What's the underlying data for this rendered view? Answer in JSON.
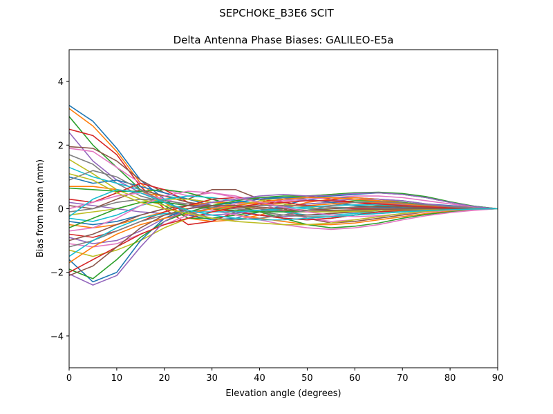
{
  "chart_data": {
    "type": "line",
    "suptitle": "SEPCHOKE_B3E6   SCIT",
    "title": "Delta Antenna Phase Biases: GALILEO-E5a",
    "xlabel": "Elevation angle (degrees)",
    "ylabel": "Bias from mean (mm)",
    "xlim": [
      0,
      90
    ],
    "ylim": [
      -5,
      5
    ],
    "xticks": [
      0,
      10,
      20,
      30,
      40,
      50,
      60,
      70,
      80,
      90
    ],
    "yticks": [
      -4,
      -2,
      0,
      2,
      4
    ],
    "xtick_labels": [
      "0",
      "10",
      "20",
      "30",
      "40",
      "50",
      "60",
      "70",
      "80",
      "90"
    ],
    "ytick_labels": [
      "−4",
      "−2",
      "0",
      "2",
      "4"
    ],
    "grid": false,
    "legend": "none",
    "x": [
      0,
      5,
      10,
      15,
      20,
      25,
      30,
      35,
      40,
      45,
      50,
      55,
      60,
      65,
      70,
      75,
      80,
      85,
      90
    ],
    "palette": [
      "#1f77b4",
      "#ff7f0e",
      "#2ca02c",
      "#d62728",
      "#9467bd",
      "#8c564b",
      "#e377c2",
      "#7f7f7f",
      "#bcbd22",
      "#17becf"
    ],
    "series": [
      {
        "values": [
          3.25,
          2.75,
          1.9,
          0.9,
          0.3,
          -0.2,
          -0.35,
          -0.3,
          -0.1,
          0.1,
          0.3,
          0.35,
          0.35,
          0.3,
          0.25,
          0.15,
          0.1,
          0.05,
          0.0
        ]
      },
      {
        "values": [
          3.15,
          2.6,
          1.8,
          0.8,
          0.2,
          -0.3,
          -0.4,
          -0.35,
          -0.2,
          0.0,
          0.2,
          0.3,
          0.35,
          0.3,
          0.2,
          0.12,
          0.08,
          0.04,
          0.0
        ]
      },
      {
        "values": [
          2.9,
          2.0,
          1.3,
          0.6,
          0.1,
          -0.3,
          -0.3,
          -0.2,
          -0.1,
          0.05,
          0.15,
          0.2,
          0.25,
          0.25,
          0.2,
          0.12,
          0.07,
          0.03,
          0.0
        ]
      },
      {
        "values": [
          2.5,
          2.3,
          1.7,
          0.7,
          0.0,
          -0.5,
          -0.4,
          -0.1,
          0.1,
          0.3,
          0.4,
          0.3,
          0.2,
          0.1,
          0.05,
          0.03,
          0.02,
          0.01,
          0.0
        ]
      },
      {
        "values": [
          2.4,
          1.5,
          0.9,
          0.5,
          0.3,
          0.1,
          0.0,
          -0.1,
          -0.2,
          -0.25,
          -0.2,
          -0.15,
          -0.1,
          -0.05,
          -0.03,
          -0.02,
          -0.01,
          0.0,
          0.0
        ]
      },
      {
        "values": [
          1.95,
          1.9,
          1.5,
          0.9,
          0.5,
          0.3,
          0.6,
          0.6,
          0.3,
          0.0,
          -0.3,
          -0.45,
          -0.4,
          -0.3,
          -0.2,
          -0.1,
          -0.05,
          -0.02,
          0.0
        ]
      },
      {
        "values": [
          1.9,
          1.8,
          1.3,
          0.8,
          0.6,
          0.4,
          0.5,
          0.4,
          0.2,
          -0.1,
          -0.3,
          -0.4,
          -0.35,
          -0.25,
          -0.15,
          -0.08,
          -0.04,
          -0.02,
          0.0
        ]
      },
      {
        "values": [
          1.7,
          1.4,
          0.8,
          0.4,
          0.2,
          0.1,
          0.05,
          0.0,
          -0.05,
          -0.1,
          -0.1,
          -0.08,
          -0.05,
          -0.03,
          -0.02,
          -0.01,
          0.0,
          0.0,
          0.0
        ]
      },
      {
        "values": [
          1.55,
          1.1,
          0.6,
          0.3,
          0.1,
          0.0,
          0.1,
          0.2,
          0.2,
          0.15,
          0.05,
          -0.05,
          -0.1,
          -0.1,
          -0.08,
          -0.05,
          -0.03,
          -0.01,
          0.0
        ]
      },
      {
        "values": [
          1.3,
          1.0,
          0.8,
          0.6,
          0.4,
          0.3,
          0.2,
          0.1,
          0.0,
          -0.1,
          -0.2,
          -0.2,
          -0.15,
          -0.1,
          -0.06,
          -0.03,
          -0.02,
          -0.01,
          0.0
        ]
      },
      {
        "values": [
          1.0,
          0.8,
          0.9,
          0.7,
          0.5,
          0.3,
          0.1,
          -0.1,
          -0.2,
          -0.3,
          -0.35,
          -0.3,
          -0.2,
          -0.1,
          -0.05,
          -0.03,
          -0.02,
          -0.01,
          0.0
        ]
      },
      {
        "values": [
          0.7,
          0.7,
          0.6,
          0.5,
          0.4,
          0.2,
          0.0,
          -0.2,
          -0.3,
          -0.4,
          -0.5,
          -0.5,
          -0.45,
          -0.35,
          -0.25,
          -0.15,
          -0.08,
          -0.03,
          0.0
        ]
      },
      {
        "values": [
          0.65,
          0.6,
          0.55,
          0.55,
          0.6,
          0.5,
          0.3,
          0.1,
          -0.1,
          -0.3,
          -0.5,
          -0.6,
          -0.55,
          -0.45,
          -0.3,
          -0.18,
          -0.1,
          -0.04,
          0.0
        ]
      },
      {
        "values": [
          0.3,
          0.2,
          0.5,
          0.8,
          0.6,
          0.2,
          0.0,
          -0.1,
          -0.2,
          -0.3,
          -0.35,
          -0.3,
          -0.2,
          -0.1,
          -0.05,
          -0.02,
          -0.01,
          0.0,
          0.0
        ]
      },
      {
        "values": [
          0.2,
          0.1,
          0.0,
          -0.1,
          -0.15,
          -0.2,
          -0.2,
          -0.15,
          -0.05,
          0.05,
          0.15,
          0.2,
          0.2,
          0.18,
          0.12,
          0.07,
          0.04,
          0.02,
          0.0
        ]
      },
      {
        "values": [
          0.1,
          0.0,
          0.3,
          0.6,
          0.4,
          0.2,
          0.1,
          0.0,
          -0.1,
          -0.2,
          -0.2,
          -0.15,
          -0.1,
          -0.05,
          -0.02,
          -0.01,
          0.0,
          0.0,
          0.0
        ]
      },
      {
        "values": [
          0.0,
          0.2,
          0.4,
          0.5,
          0.3,
          0.1,
          -0.05,
          -0.2,
          -0.35,
          -0.5,
          -0.6,
          -0.65,
          -0.6,
          -0.5,
          -0.35,
          -0.22,
          -0.12,
          -0.05,
          0.0
        ]
      },
      {
        "values": [
          -0.1,
          0.0,
          0.2,
          0.3,
          0.25,
          0.15,
          0.1,
          0.0,
          -0.1,
          -0.2,
          -0.25,
          -0.25,
          -0.2,
          -0.15,
          -0.1,
          -0.05,
          -0.03,
          -0.01,
          0.0
        ]
      },
      {
        "values": [
          -0.2,
          -0.1,
          0.0,
          0.2,
          0.3,
          0.3,
          0.2,
          0.1,
          0.0,
          -0.05,
          -0.1,
          -0.1,
          -0.08,
          -0.05,
          -0.03,
          -0.02,
          -0.01,
          0.0,
          0.0
        ]
      },
      {
        "values": [
          -0.3,
          -0.4,
          -0.2,
          0.1,
          0.3,
          0.4,
          0.35,
          0.25,
          0.15,
          0.05,
          0.0,
          0.0,
          0.02,
          0.03,
          0.03,
          0.02,
          0.01,
          0.0,
          0.0
        ]
      },
      {
        "values": [
          -0.4,
          -0.5,
          -0.4,
          -0.2,
          0.0,
          0.1,
          0.2,
          0.3,
          0.35,
          0.35,
          0.3,
          0.2,
          0.1,
          0.05,
          0.02,
          0.01,
          0.0,
          0.0,
          0.0
        ]
      },
      {
        "values": [
          -0.5,
          -0.6,
          -0.5,
          -0.3,
          -0.1,
          0.1,
          0.2,
          0.2,
          0.15,
          0.1,
          0.1,
          0.15,
          0.2,
          0.2,
          0.15,
          0.1,
          0.05,
          0.02,
          0.0
        ]
      },
      {
        "values": [
          -0.6,
          -0.3,
          0.0,
          0.2,
          0.2,
          0.1,
          0.0,
          -0.05,
          -0.1,
          -0.1,
          -0.05,
          0.0,
          0.05,
          0.08,
          0.07,
          0.05,
          0.03,
          0.01,
          0.0
        ]
      },
      {
        "values": [
          -0.8,
          -0.9,
          -0.7,
          -0.4,
          -0.1,
          0.1,
          0.3,
          0.35,
          0.3,
          0.2,
          0.1,
          0.05,
          0.0,
          0.0,
          0.0,
          0.0,
          0.0,
          0.0,
          0.0
        ]
      },
      {
        "values": [
          -0.9,
          -1.1,
          -1.0,
          -0.7,
          -0.3,
          0.0,
          0.2,
          0.3,
          0.35,
          0.3,
          0.25,
          0.25,
          0.3,
          0.3,
          0.25,
          0.15,
          0.08,
          0.03,
          0.0
        ]
      },
      {
        "values": [
          -1.0,
          -0.8,
          -0.5,
          -0.2,
          0.0,
          0.1,
          0.1,
          0.05,
          0.0,
          -0.05,
          -0.05,
          0.0,
          0.05,
          0.07,
          0.06,
          0.04,
          0.02,
          0.01,
          0.0
        ]
      },
      {
        "values": [
          -1.1,
          -1.2,
          -1.1,
          -0.8,
          -0.5,
          -0.2,
          0.0,
          0.15,
          0.2,
          0.25,
          0.3,
          0.35,
          0.4,
          0.4,
          0.35,
          0.25,
          0.15,
          0.06,
          0.0
        ]
      },
      {
        "values": [
          -1.2,
          -1.0,
          -0.7,
          -0.4,
          -0.2,
          -0.1,
          0.0,
          0.05,
          0.1,
          0.1,
          0.08,
          0.05,
          0.03,
          0.02,
          0.01,
          0.0,
          0.0,
          0.0,
          0.0
        ]
      },
      {
        "values": [
          -1.3,
          -1.5,
          -1.3,
          -1.0,
          -0.6,
          -0.3,
          -0.1,
          0.1,
          0.25,
          0.35,
          0.4,
          0.45,
          0.5,
          0.5,
          0.45,
          0.35,
          0.2,
          0.08,
          0.0
        ]
      },
      {
        "values": [
          -1.5,
          -1.0,
          -0.6,
          -0.3,
          -0.15,
          -0.1,
          -0.1,
          -0.1,
          -0.05,
          0.0,
          0.05,
          0.1,
          0.12,
          0.12,
          0.1,
          0.07,
          0.04,
          0.02,
          0.0
        ]
      },
      {
        "values": [
          -1.6,
          -2.3,
          -2.0,
          -1.0,
          -0.3,
          0.0,
          0.1,
          0.2,
          0.3,
          0.35,
          0.35,
          0.4,
          0.45,
          0.5,
          0.45,
          0.35,
          0.2,
          0.08,
          0.0
        ]
      },
      {
        "values": [
          -1.7,
          -1.2,
          -0.8,
          -0.5,
          -0.3,
          -0.15,
          0.0,
          0.1,
          0.2,
          0.3,
          0.35,
          0.35,
          0.3,
          0.25,
          0.18,
          0.1,
          0.05,
          0.02,
          0.0
        ]
      },
      {
        "values": [
          -1.9,
          -2.2,
          -1.6,
          -0.9,
          -0.4,
          -0.1,
          0.1,
          0.25,
          0.35,
          0.4,
          0.4,
          0.45,
          0.5,
          0.52,
          0.48,
          0.38,
          0.22,
          0.08,
          0.0
        ]
      },
      {
        "values": [
          -2.0,
          -1.6,
          -1.2,
          -0.8,
          -0.5,
          -0.3,
          -0.1,
          0.05,
          0.15,
          0.2,
          0.25,
          0.25,
          0.2,
          0.15,
          0.1,
          0.06,
          0.03,
          0.01,
          0.0
        ]
      },
      {
        "values": [
          -2.05,
          -2.4,
          -2.1,
          -1.2,
          -0.4,
          0.0,
          0.2,
          0.3,
          0.4,
          0.45,
          0.4,
          0.42,
          0.48,
          0.5,
          0.45,
          0.35,
          0.2,
          0.07,
          0.0
        ]
      },
      {
        "values": [
          -2.1,
          -1.8,
          -1.2,
          -0.6,
          -0.2,
          0.0,
          0.1,
          0.1,
          0.05,
          0.0,
          -0.05,
          -0.05,
          -0.03,
          -0.02,
          -0.01,
          0.0,
          0.0,
          0.0,
          0.0
        ]
      },
      {
        "values": [
          -0.7,
          -0.6,
          -0.3,
          0.1,
          0.4,
          0.55,
          0.5,
          0.35,
          0.2,
          0.05,
          -0.1,
          -0.2,
          -0.25,
          -0.22,
          -0.16,
          -0.1,
          -0.05,
          -0.02,
          0.0
        ]
      },
      {
        "values": [
          0.9,
          1.2,
          1.0,
          0.6,
          0.2,
          -0.1,
          -0.3,
          -0.35,
          -0.3,
          -0.2,
          -0.05,
          0.1,
          0.2,
          0.22,
          0.18,
          0.12,
          0.06,
          0.02,
          0.0
        ]
      },
      {
        "values": [
          1.1,
          0.9,
          0.5,
          0.2,
          0.0,
          -0.15,
          -0.3,
          -0.4,
          -0.45,
          -0.5,
          -0.5,
          -0.45,
          -0.35,
          -0.25,
          -0.15,
          -0.08,
          -0.04,
          -0.01,
          0.0
        ]
      },
      {
        "values": [
          -0.25,
          0.3,
          0.6,
          0.5,
          0.2,
          -0.05,
          -0.2,
          -0.3,
          -0.35,
          -0.35,
          -0.3,
          -0.25,
          -0.2,
          -0.15,
          -0.1,
          -0.06,
          -0.03,
          -0.01,
          0.0
        ]
      }
    ]
  }
}
